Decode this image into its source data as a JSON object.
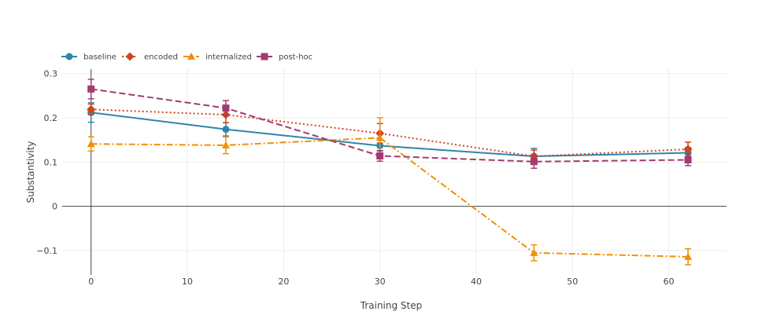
{
  "chart_data": {
    "type": "line",
    "title": "",
    "xlabel": "Training Step",
    "ylabel": "Substantivity",
    "xlim": [
      -3,
      66
    ],
    "ylim": [
      -0.155,
      0.31
    ],
    "x_ticks": [
      0,
      10,
      20,
      30,
      40,
      50,
      60
    ],
    "y_ticks": [
      -0.1,
      0,
      0.1,
      0.2,
      0.3
    ],
    "y_tick_labels": [
      "−0.1",
      "0",
      "0.1",
      "0.2",
      "0.3"
    ],
    "grid": true,
    "legend_position": "top-left",
    "series": [
      {
        "name": "baseline",
        "color": "#2e86ab",
        "dash": "solid",
        "marker": "circle",
        "x": [
          0,
          14,
          30,
          46,
          62
        ],
        "y": [
          0.212,
          0.174,
          0.137,
          0.113,
          0.121
        ],
        "error": [
          0.022,
          0.015,
          0.012,
          0.018,
          0.012
        ]
      },
      {
        "name": "encoded",
        "color": "#d1441a",
        "dash": "dot",
        "marker": "diamond",
        "x": [
          0,
          14,
          30,
          46,
          62
        ],
        "y": [
          0.219,
          0.207,
          0.165,
          0.113,
          0.129
        ],
        "error": [
          0.012,
          0.018,
          0.022,
          0.014,
          0.016
        ]
      },
      {
        "name": "internalized",
        "color": "#f18f01",
        "dash": "dashdot",
        "marker": "triangle-up",
        "x": [
          0,
          14,
          30,
          46,
          62
        ],
        "y": [
          0.141,
          0.138,
          0.155,
          -0.105,
          -0.114
        ],
        "error": [
          0.016,
          0.019,
          0.045,
          0.018,
          0.018
        ]
      },
      {
        "name": "post-hoc",
        "color": "#a23b72",
        "dash": "dash",
        "marker": "square",
        "x": [
          0,
          14,
          30,
          46,
          62
        ],
        "y": [
          0.265,
          0.222,
          0.114,
          0.101,
          0.105
        ],
        "error": [
          0.022,
          0.017,
          0.012,
          0.015,
          0.013
        ]
      }
    ]
  }
}
